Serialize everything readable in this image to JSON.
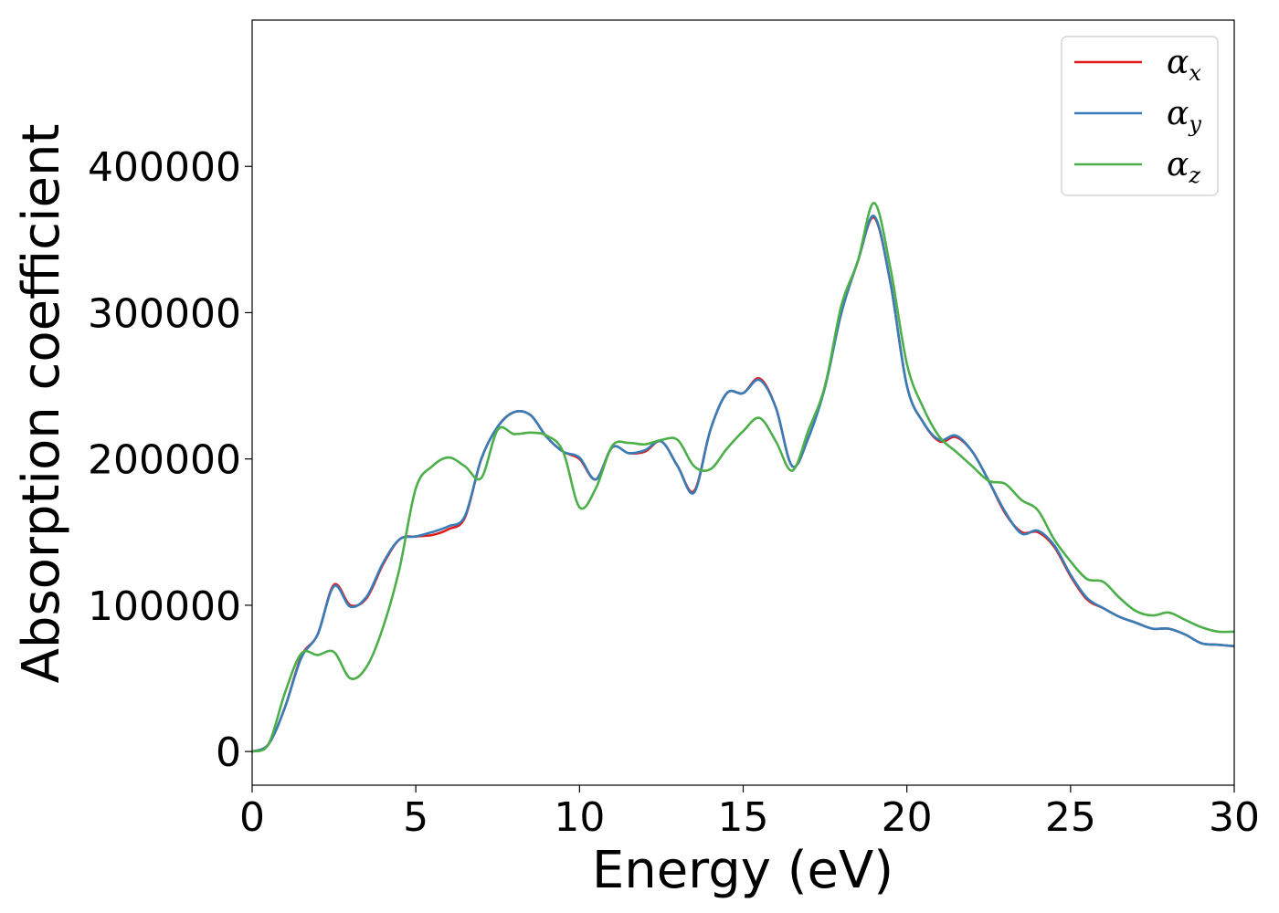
{
  "chart_data": {
    "type": "line",
    "xlabel": "Energy (eV)",
    "ylabel": "Absorption coefficient",
    "xlim": [
      0,
      30
    ],
    "ylim": [
      -23000,
      500000
    ],
    "xticks": [
      0,
      5,
      10,
      15,
      20,
      25,
      30
    ],
    "yticks": [
      0,
      100000,
      200000,
      300000,
      400000
    ],
    "grid": false,
    "legend_position": "top-right",
    "series": [
      {
        "name": "α",
        "subscript": "x",
        "color": "#e41a1c",
        "x": [
          0,
          0.5,
          1.0,
          1.5,
          2.0,
          2.5,
          3.0,
          3.5,
          4.0,
          4.5,
          5.0,
          5.5,
          6.0,
          6.5,
          7.0,
          7.5,
          8.0,
          8.5,
          9.0,
          9.5,
          10.0,
          10.5,
          11.0,
          11.5,
          12.0,
          12.5,
          13.0,
          13.5,
          14.0,
          14.5,
          15.0,
          15.5,
          16.0,
          16.5,
          17.0,
          17.5,
          18.0,
          18.5,
          19.0,
          19.5,
          20.0,
          20.5,
          21.0,
          21.5,
          22.0,
          22.5,
          23.0,
          23.5,
          24.0,
          24.5,
          25.0,
          25.5,
          26.0,
          26.5,
          27.0,
          27.5,
          28.0,
          28.5,
          29.0,
          29.5,
          30.0
        ],
        "y": [
          0,
          5000,
          30000,
          65000,
          80000,
          114000,
          100000,
          105000,
          128000,
          145000,
          147000,
          148000,
          152000,
          160000,
          200000,
          222000,
          232000,
          230000,
          215000,
          205000,
          200000,
          186000,
          208000,
          204000,
          205000,
          212000,
          195000,
          178000,
          220000,
          245000,
          245000,
          255000,
          235000,
          195000,
          215000,
          250000,
          300000,
          335000,
          365000,
          320000,
          250000,
          225000,
          212000,
          215000,
          205000,
          185000,
          163000,
          150000,
          150000,
          140000,
          120000,
          104000,
          98000,
          92000,
          88000,
          84000,
          84000,
          80000,
          74000,
          73000,
          72000
        ]
      },
      {
        "name": "α",
        "subscript": "y",
        "color": "#377eb8",
        "x": [
          0,
          0.5,
          1.0,
          1.5,
          2.0,
          2.5,
          3.0,
          3.5,
          4.0,
          4.5,
          5.0,
          5.5,
          6.0,
          6.5,
          7.0,
          7.5,
          8.0,
          8.5,
          9.0,
          9.5,
          10.0,
          10.5,
          11.0,
          11.5,
          12.0,
          12.5,
          13.0,
          13.5,
          14.0,
          14.5,
          15.0,
          15.5,
          16.0,
          16.5,
          17.0,
          17.5,
          18.0,
          18.5,
          19.0,
          19.5,
          20.0,
          20.5,
          21.0,
          21.5,
          22.0,
          22.5,
          23.0,
          23.5,
          24.0,
          24.5,
          25.0,
          25.5,
          26.0,
          26.5,
          27.0,
          27.5,
          28.0,
          28.5,
          29.0,
          29.5,
          30.0
        ],
        "y": [
          0,
          5000,
          30000,
          64000,
          80000,
          113000,
          99000,
          106000,
          129000,
          145000,
          147000,
          150000,
          154000,
          161000,
          200000,
          222000,
          232000,
          230000,
          215000,
          205000,
          201000,
          186000,
          208000,
          204000,
          206000,
          212000,
          195000,
          177000,
          220000,
          245000,
          245000,
          254000,
          235000,
          195000,
          215000,
          249000,
          300000,
          335000,
          366000,
          320000,
          250000,
          225000,
          213000,
          216000,
          205000,
          185000,
          164000,
          149000,
          151000,
          141000,
          121000,
          105000,
          98000,
          92000,
          88000,
          84000,
          84000,
          80000,
          74000,
          73000,
          72000
        ]
      },
      {
        "name": "α",
        "subscript": "z",
        "color": "#4daf4a",
        "x": [
          0,
          0.5,
          1.0,
          1.5,
          2.0,
          2.5,
          3.0,
          3.5,
          4.0,
          4.5,
          5.0,
          5.5,
          6.0,
          6.5,
          7.0,
          7.5,
          8.0,
          8.5,
          9.0,
          9.5,
          10.0,
          10.5,
          11.0,
          11.5,
          12.0,
          12.5,
          13.0,
          13.5,
          14.0,
          14.5,
          15.0,
          15.5,
          16.0,
          16.5,
          17.0,
          17.5,
          18.0,
          18.5,
          19.0,
          19.5,
          20.0,
          20.5,
          21.0,
          21.5,
          22.0,
          22.5,
          23.0,
          23.5,
          24.0,
          24.5,
          25.0,
          25.5,
          26.0,
          26.5,
          27.0,
          27.5,
          28.0,
          28.5,
          29.0,
          29.5,
          30.0
        ],
        "y": [
          0,
          5000,
          40000,
          67000,
          66000,
          68000,
          50000,
          58000,
          85000,
          125000,
          180000,
          195000,
          201000,
          195000,
          187000,
          220000,
          217000,
          218000,
          216000,
          205000,
          167000,
          180000,
          209000,
          211000,
          210000,
          213000,
          213000,
          195000,
          193000,
          207000,
          219000,
          228000,
          212000,
          192000,
          220000,
          250000,
          305000,
          335000,
          375000,
          330000,
          265000,
          235000,
          215000,
          205000,
          195000,
          185000,
          183000,
          172000,
          165000,
          145000,
          130000,
          118000,
          116000,
          105000,
          96000,
          93000,
          95000,
          90000,
          85000,
          82000,
          82000
        ]
      }
    ]
  }
}
